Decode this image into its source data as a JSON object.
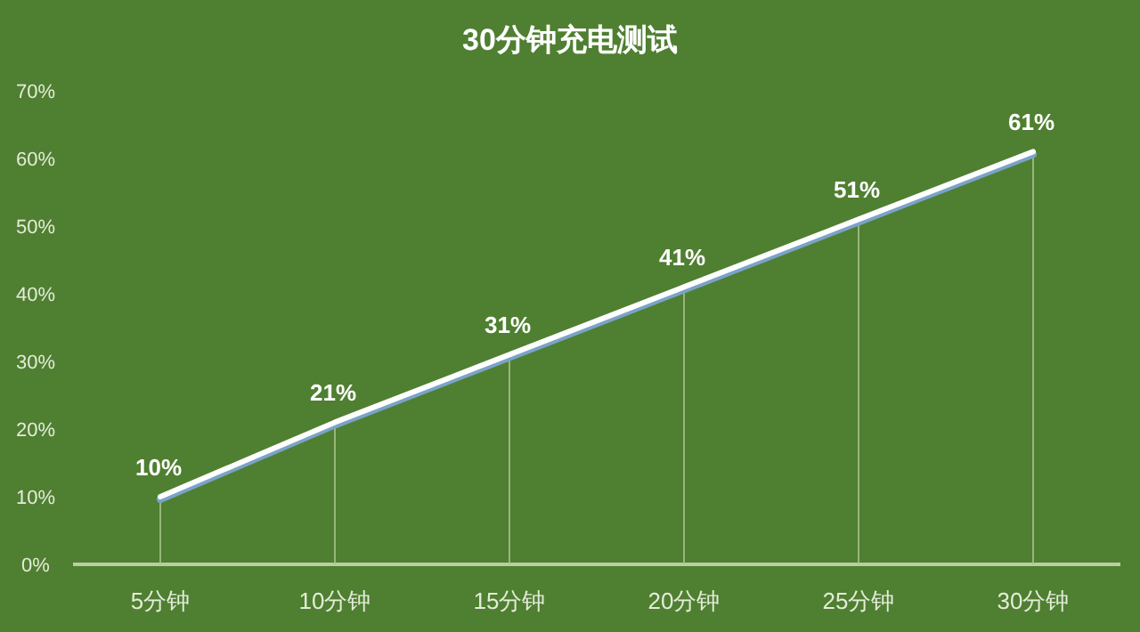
{
  "chart_data": {
    "type": "line",
    "title": "30分钟充电测试",
    "categories": [
      "5分钟",
      "10分钟",
      "15分钟",
      "20分钟",
      "25分钟",
      "30分钟"
    ],
    "series": [
      {
        "color": "#ffffff",
        "values": [
          10,
          21,
          31,
          41,
          51,
          61
        ],
        "value_labels": [
          "10%",
          "21%",
          "31%",
          "41%",
          "51%",
          "61%"
        ]
      }
    ],
    "ylim": [
      0,
      70
    ],
    "yticks": [
      {
        "value": 0,
        "label": "0%"
      },
      {
        "value": 10,
        "label": "10%"
      },
      {
        "value": 20,
        "label": "20%"
      },
      {
        "value": 30,
        "label": "30%"
      },
      {
        "value": 40,
        "label": "40%"
      },
      {
        "value": 50,
        "label": "50%"
      },
      {
        "value": 60,
        "label": "60%"
      },
      {
        "value": 70,
        "label": "70%"
      }
    ],
    "grid": "x"
  }
}
